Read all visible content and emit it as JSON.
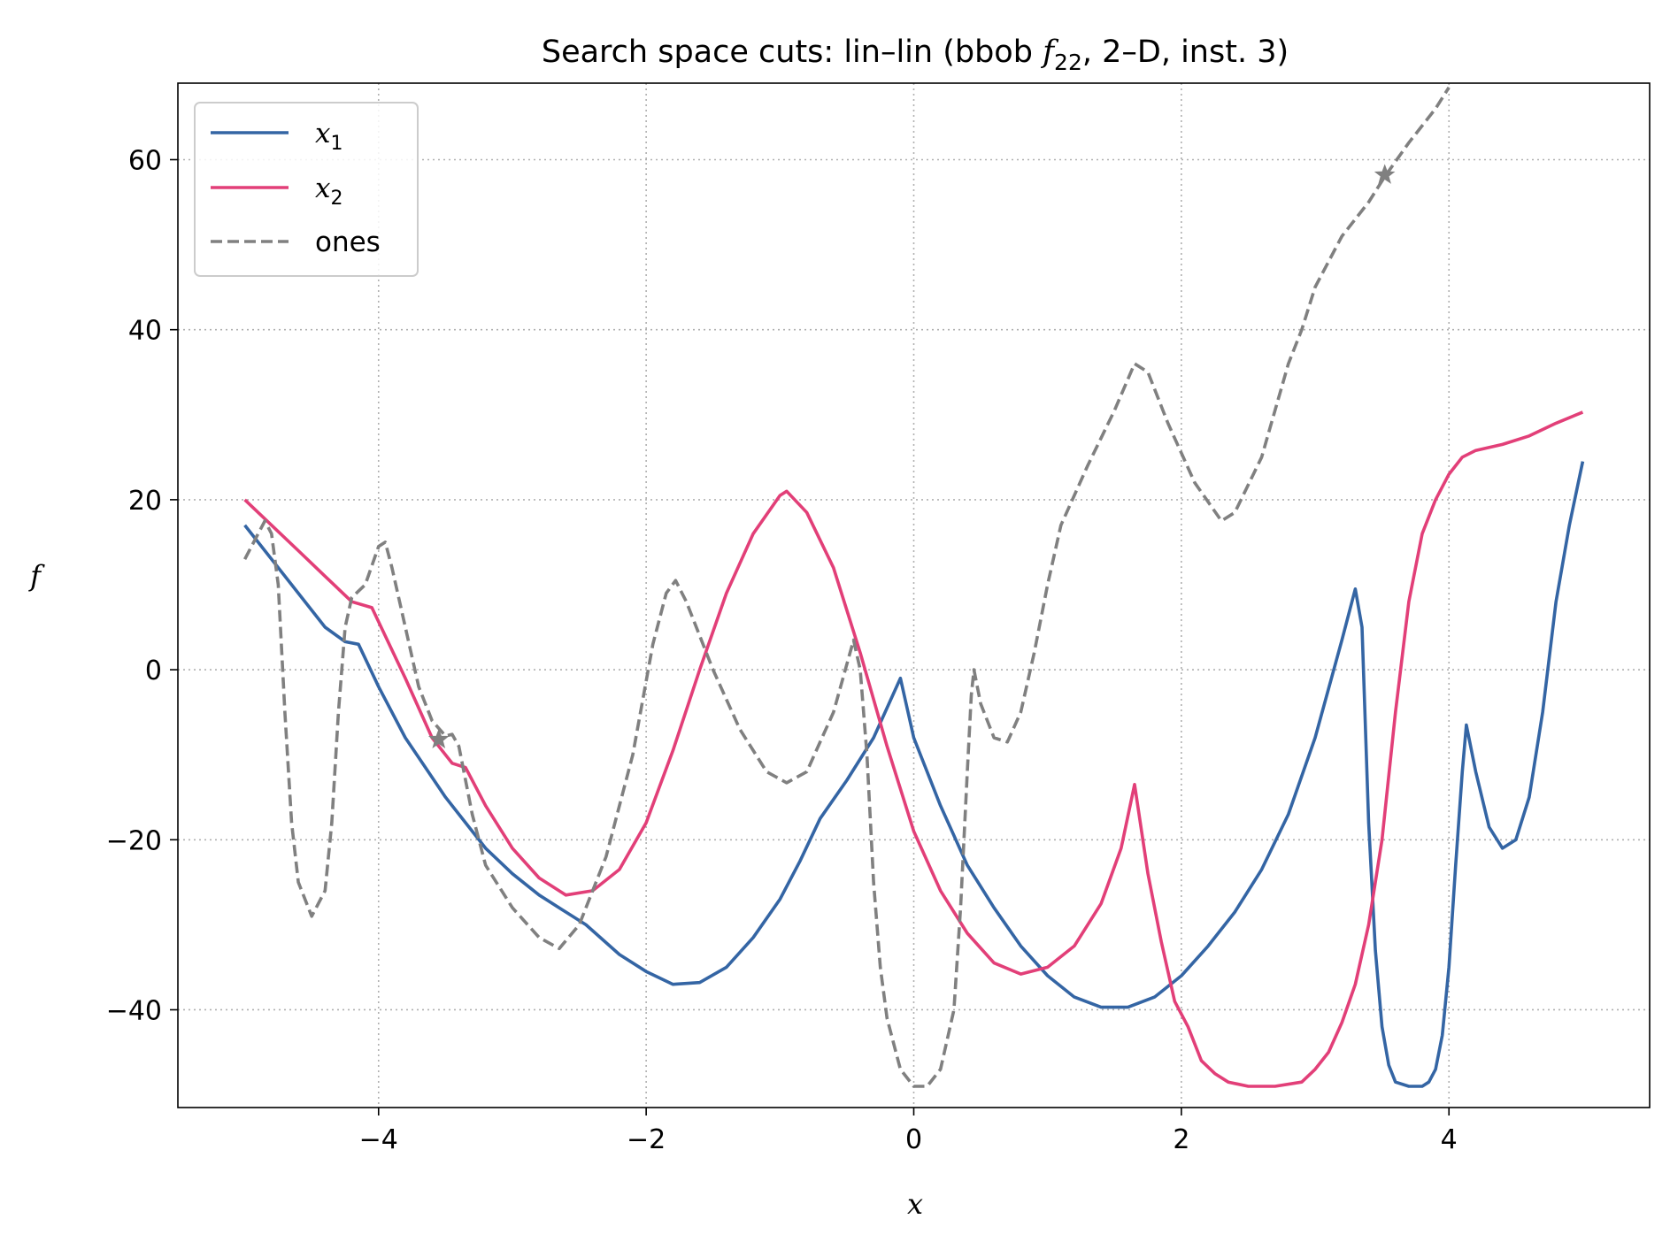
{
  "chart_data": {
    "type": "line",
    "title_parts": {
      "prefix": "Search space cuts: lin–lin (bbob ",
      "func": "f",
      "func_sub": "22",
      "suffix": ", 2–D, inst. 3)"
    },
    "xlabel": "x",
    "ylabel": "f",
    "xlim": [
      -5.5,
      5.5
    ],
    "ylim": [
      -51.5,
      69
    ],
    "xticks": [
      -4,
      -2,
      0,
      2,
      4
    ],
    "xtick_labels": [
      "−4",
      "−2",
      "0",
      "2",
      "4"
    ],
    "yticks": [
      -40,
      -20,
      0,
      20,
      40,
      60
    ],
    "ytick_labels": [
      "−40",
      "−20",
      "0",
      "20",
      "40",
      "60"
    ],
    "grid": true,
    "legend_position": "top-left",
    "series": [
      {
        "name": "x",
        "name_sub": "1",
        "color": "#3465a4",
        "style": "solid",
        "points": [
          [
            -5,
            17
          ],
          [
            -4.6,
            9
          ],
          [
            -4.4,
            5
          ],
          [
            -4.25,
            3.3
          ],
          [
            -4.15,
            3
          ],
          [
            -4.0,
            -2
          ],
          [
            -3.8,
            -8
          ],
          [
            -3.5,
            -15
          ],
          [
            -3.2,
            -21
          ],
          [
            -3.0,
            -24
          ],
          [
            -2.8,
            -26.5
          ],
          [
            -2.6,
            -28.5
          ],
          [
            -2.45,
            -30
          ],
          [
            -2.2,
            -33.5
          ],
          [
            -2.0,
            -35.5
          ],
          [
            -1.8,
            -37
          ],
          [
            -1.6,
            -36.8
          ],
          [
            -1.4,
            -35
          ],
          [
            -1.2,
            -31.5
          ],
          [
            -1.0,
            -27
          ],
          [
            -0.85,
            -22.5
          ],
          [
            -0.7,
            -17.5
          ],
          [
            -0.5,
            -13
          ],
          [
            -0.3,
            -8
          ],
          [
            -0.2,
            -4.5
          ],
          [
            -0.1,
            -1
          ],
          [
            0.0,
            -8
          ],
          [
            0.2,
            -16
          ],
          [
            0.4,
            -23
          ],
          [
            0.6,
            -28
          ],
          [
            0.8,
            -32.5
          ],
          [
            1.0,
            -36
          ],
          [
            1.2,
            -38.5
          ],
          [
            1.4,
            -39.7
          ],
          [
            1.6,
            -39.7
          ],
          [
            1.8,
            -38.5
          ],
          [
            2.0,
            -36
          ],
          [
            2.2,
            -32.5
          ],
          [
            2.4,
            -28.5
          ],
          [
            2.6,
            -23.5
          ],
          [
            2.8,
            -17
          ],
          [
            3.0,
            -8
          ],
          [
            3.2,
            3.5
          ],
          [
            3.3,
            9.5
          ],
          [
            3.35,
            5
          ],
          [
            3.4,
            -18
          ],
          [
            3.45,
            -33
          ],
          [
            3.5,
            -42
          ],
          [
            3.55,
            -46.5
          ],
          [
            3.6,
            -48.5
          ],
          [
            3.7,
            -49
          ],
          [
            3.8,
            -49
          ],
          [
            3.85,
            -48.5
          ],
          [
            3.9,
            -47
          ],
          [
            3.95,
            -43
          ],
          [
            4.0,
            -35
          ],
          [
            4.05,
            -23
          ],
          [
            4.1,
            -12
          ],
          [
            4.13,
            -6.5
          ],
          [
            4.2,
            -12
          ],
          [
            4.3,
            -18.5
          ],
          [
            4.4,
            -21
          ],
          [
            4.5,
            -20
          ],
          [
            4.6,
            -15
          ],
          [
            4.7,
            -5
          ],
          [
            4.8,
            8
          ],
          [
            4.9,
            17
          ],
          [
            5.0,
            24.5
          ]
        ]
      },
      {
        "name": "x",
        "name_sub": "2",
        "color": "#e23f78",
        "style": "solid",
        "points": [
          [
            -5,
            20
          ],
          [
            -4.8,
            17
          ],
          [
            -4.6,
            14
          ],
          [
            -4.4,
            11
          ],
          [
            -4.2,
            8
          ],
          [
            -4.05,
            7.3
          ],
          [
            -3.8,
            -1
          ],
          [
            -3.6,
            -8
          ],
          [
            -3.45,
            -11
          ],
          [
            -3.35,
            -11.5
          ],
          [
            -3.2,
            -16
          ],
          [
            -3.0,
            -21
          ],
          [
            -2.8,
            -24.5
          ],
          [
            -2.6,
            -26.5
          ],
          [
            -2.4,
            -26
          ],
          [
            -2.2,
            -23.5
          ],
          [
            -2.0,
            -18
          ],
          [
            -1.8,
            -9.5
          ],
          [
            -1.6,
            0
          ],
          [
            -1.4,
            9
          ],
          [
            -1.2,
            16
          ],
          [
            -1.0,
            20.5
          ],
          [
            -0.95,
            21
          ],
          [
            -0.8,
            18.5
          ],
          [
            -0.6,
            12
          ],
          [
            -0.4,
            2
          ],
          [
            -0.2,
            -9
          ],
          [
            0.0,
            -19
          ],
          [
            0.2,
            -26
          ],
          [
            0.4,
            -31
          ],
          [
            0.6,
            -34.5
          ],
          [
            0.8,
            -35.8
          ],
          [
            1.0,
            -35
          ],
          [
            1.2,
            -32.5
          ],
          [
            1.4,
            -27.5
          ],
          [
            1.55,
            -21
          ],
          [
            1.65,
            -13.5
          ],
          [
            1.75,
            -24
          ],
          [
            1.85,
            -32
          ],
          [
            1.95,
            -39
          ],
          [
            2.05,
            -42
          ],
          [
            2.15,
            -46
          ],
          [
            2.25,
            -47.5
          ],
          [
            2.35,
            -48.5
          ],
          [
            2.5,
            -49
          ],
          [
            2.7,
            -49
          ],
          [
            2.9,
            -48.5
          ],
          [
            3.0,
            -47
          ],
          [
            3.1,
            -45
          ],
          [
            3.2,
            -41.5
          ],
          [
            3.3,
            -37
          ],
          [
            3.4,
            -30
          ],
          [
            3.5,
            -20
          ],
          [
            3.6,
            -5
          ],
          [
            3.7,
            8
          ],
          [
            3.8,
            16
          ],
          [
            3.9,
            20
          ],
          [
            4.0,
            23
          ],
          [
            4.1,
            25
          ],
          [
            4.2,
            25.8
          ],
          [
            4.4,
            26.5
          ],
          [
            4.6,
            27.5
          ],
          [
            4.8,
            29
          ],
          [
            5.0,
            30.3
          ]
        ]
      },
      {
        "name": "ones",
        "color": "#808080",
        "style": "dashed",
        "points": [
          [
            -5,
            13
          ],
          [
            -4.9,
            16
          ],
          [
            -4.85,
            17.5
          ],
          [
            -4.8,
            16
          ],
          [
            -4.75,
            10
          ],
          [
            -4.7,
            -5
          ],
          [
            -4.65,
            -18
          ],
          [
            -4.6,
            -25
          ],
          [
            -4.5,
            -29
          ],
          [
            -4.4,
            -26
          ],
          [
            -4.35,
            -18
          ],
          [
            -4.3,
            -5
          ],
          [
            -4.25,
            5
          ],
          [
            -4.2,
            8.5
          ],
          [
            -4.1,
            10
          ],
          [
            -4.0,
            14.5
          ],
          [
            -3.95,
            15
          ],
          [
            -3.9,
            12
          ],
          [
            -3.8,
            5
          ],
          [
            -3.7,
            -2
          ],
          [
            -3.6,
            -6
          ],
          [
            -3.5,
            -7.8
          ],
          [
            -3.45,
            -7.6
          ],
          [
            -3.4,
            -9
          ],
          [
            -3.3,
            -17
          ],
          [
            -3.2,
            -23
          ],
          [
            -3.0,
            -28
          ],
          [
            -2.8,
            -31.5
          ],
          [
            -2.65,
            -32.8
          ],
          [
            -2.5,
            -30
          ],
          [
            -2.3,
            -22
          ],
          [
            -2.1,
            -10
          ],
          [
            -1.95,
            3
          ],
          [
            -1.85,
            9
          ],
          [
            -1.78,
            10.5
          ],
          [
            -1.7,
            8
          ],
          [
            -1.5,
            0
          ],
          [
            -1.3,
            -7
          ],
          [
            -1.1,
            -12
          ],
          [
            -0.95,
            -13.3
          ],
          [
            -0.8,
            -12
          ],
          [
            -0.6,
            -5
          ],
          [
            -0.45,
            3.5
          ],
          [
            -0.4,
            0
          ],
          [
            -0.35,
            -10
          ],
          [
            -0.3,
            -25
          ],
          [
            -0.25,
            -35
          ],
          [
            -0.2,
            -41
          ],
          [
            -0.1,
            -47
          ],
          [
            0.0,
            -49
          ],
          [
            0.1,
            -49
          ],
          [
            0.2,
            -47
          ],
          [
            0.3,
            -40
          ],
          [
            0.35,
            -28
          ],
          [
            0.4,
            -12
          ],
          [
            0.43,
            -3
          ],
          [
            0.45,
            0
          ],
          [
            0.5,
            -4
          ],
          [
            0.6,
            -8
          ],
          [
            0.7,
            -8.5
          ],
          [
            0.8,
            -5
          ],
          [
            0.9,
            2
          ],
          [
            1.0,
            10
          ],
          [
            1.1,
            17
          ],
          [
            1.3,
            24
          ],
          [
            1.5,
            30.5
          ],
          [
            1.65,
            36
          ],
          [
            1.75,
            35
          ],
          [
            1.9,
            29
          ],
          [
            2.1,
            22
          ],
          [
            2.3,
            17.5
          ],
          [
            2.4,
            18.5
          ],
          [
            2.6,
            25
          ],
          [
            2.8,
            36
          ],
          [
            2.9,
            40
          ],
          [
            3.0,
            45
          ],
          [
            3.2,
            51
          ],
          [
            3.4,
            55
          ],
          [
            3.52,
            58
          ],
          [
            3.7,
            62
          ],
          [
            3.9,
            66
          ],
          [
            4.0,
            68.5
          ]
        ]
      }
    ],
    "markers": [
      {
        "x": -3.55,
        "y": -8.2,
        "shape": "star",
        "color": "#808080"
      },
      {
        "x": 3.52,
        "y": 58.2,
        "shape": "star",
        "color": "#808080"
      }
    ],
    "legend_frame_color": "#cccccc",
    "grid_color": "#b0b0b0"
  }
}
